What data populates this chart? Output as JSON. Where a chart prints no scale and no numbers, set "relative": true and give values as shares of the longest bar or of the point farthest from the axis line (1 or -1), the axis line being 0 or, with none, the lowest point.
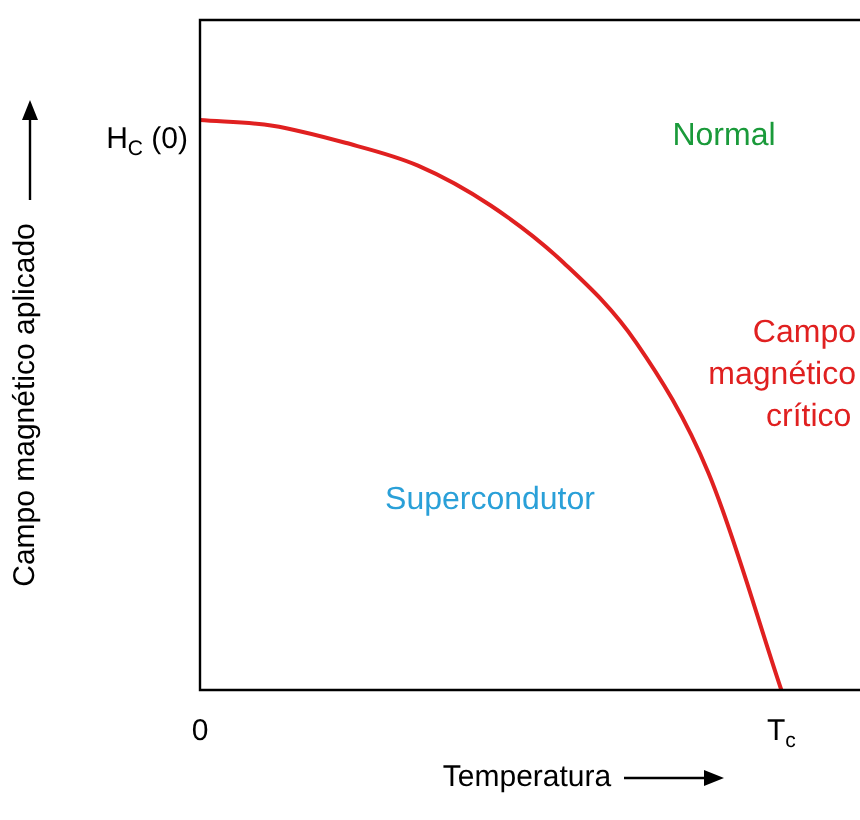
{
  "chart_data": {
    "type": "line",
    "relative": true,
    "xlabel": "Temperatura",
    "ylabel": "Campo magnético aplicado",
    "categories": [
      "0",
      null,
      null,
      null,
      null,
      null,
      null,
      null,
      "T$_{c}$",
      null
    ],
    "series": [
      {
        "name": "Campo magnético crítico",
        "color": "#e02020",
        "values": [
          1,
          0.99,
          0.96,
          0.92,
          0.85,
          0.75,
          0.61,
          0.38,
          0,
          null
        ]
      }
    ],
    "annotations": [
      "Normal",
      "Supercondutor",
      "H$_{C}$ (0)"
    ],
    "grid": false,
    "legend": false,
    "marker": "none",
    "line_style": "solid"
  }
}
